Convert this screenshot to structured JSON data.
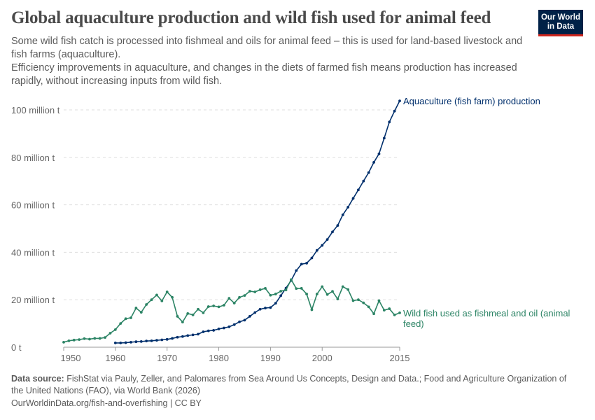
{
  "title": "Global aquaculture production and wild fish used for animal feed",
  "subtitle": [
    "Some wild fish catch is processed into fishmeal and oils for animal feed – this is used for land-based livestock and fish farms (aquaculture).",
    "Efficiency improvements in aquaculture, and changes in the diets of farmed fish means production has increased rapidly, without increasing inputs from wild fish."
  ],
  "logo": "Our World in Data",
  "footer": {
    "source_label": "Data source:",
    "source": "FishStat via Pauly, Zeller, and Palomares from Sea Around Us Concepts, Design and Data.; Food and Agriculture Organization of the United Nations (FAO), via World Bank (2026)",
    "link": "OurWorldinData.org/fish-and-overfishing | CC BY"
  },
  "chart_data": {
    "type": "line",
    "ylim": [
      0,
      100
    ],
    "xlim": [
      1950,
      2015
    ],
    "grid": "horizontal dashed",
    "yticks": [
      {
        "v": 0,
        "label": "0 t"
      },
      {
        "v": 20,
        "label": "20 million t"
      },
      {
        "v": 40,
        "label": "40 million t"
      },
      {
        "v": 60,
        "label": "60 million t"
      },
      {
        "v": 80,
        "label": "80 million t"
      },
      {
        "v": 100,
        "label": "100 million t"
      }
    ],
    "xticks": [
      1950,
      1960,
      1970,
      1980,
      1990,
      2000,
      2015
    ],
    "series": [
      {
        "name": "Aquaculture (fish farm) production",
        "color": "#002f6c",
        "start": 1960,
        "values": [
          1.8,
          1.8,
          1.9,
          2.1,
          2.3,
          2.4,
          2.6,
          2.7,
          2.9,
          3.1,
          3.3,
          3.7,
          4.2,
          4.5,
          4.9,
          5.2,
          5.5,
          6.5,
          6.9,
          7.1,
          7.7,
          8.1,
          8.6,
          9.5,
          10.7,
          11.4,
          13.0,
          14.6,
          16.0,
          16.5,
          16.7,
          18.5,
          21.7,
          24.9,
          28.1,
          32.3,
          35.0,
          35.4,
          37.6,
          40.8,
          42.9,
          45.4,
          48.6,
          51.3,
          55.8,
          59.0,
          62.7,
          66.3,
          70.0,
          73.6,
          77.9,
          81.5,
          88.1,
          94.9,
          99.5,
          103.8
        ]
      },
      {
        "name": "Wild fish used as fishmeal and oil (animal feed)",
        "color": "#2c8465",
        "start": 1950,
        "values": [
          2.1,
          2.7,
          3.0,
          3.2,
          3.6,
          3.4,
          3.7,
          3.7,
          4.1,
          5.9,
          7.4,
          10.0,
          12.0,
          12.4,
          16.5,
          14.7,
          18.0,
          20.0,
          22.0,
          19.5,
          23.3,
          21.0,
          13.0,
          10.6,
          14.2,
          13.6,
          16.0,
          14.5,
          17.1,
          17.4,
          17.0,
          17.7,
          20.6,
          18.6,
          21.0,
          21.8,
          23.6,
          23.3,
          24.2,
          24.8,
          21.9,
          22.4,
          23.6,
          24.1,
          28.5,
          24.7,
          24.8,
          22.4,
          15.8,
          22.4,
          25.5,
          22.2,
          23.5,
          20.3,
          25.5,
          24.3,
          19.6,
          20.0,
          18.7,
          17.0,
          14.1,
          19.6,
          15.6,
          16.2,
          13.6,
          14.5
        ]
      }
    ]
  }
}
